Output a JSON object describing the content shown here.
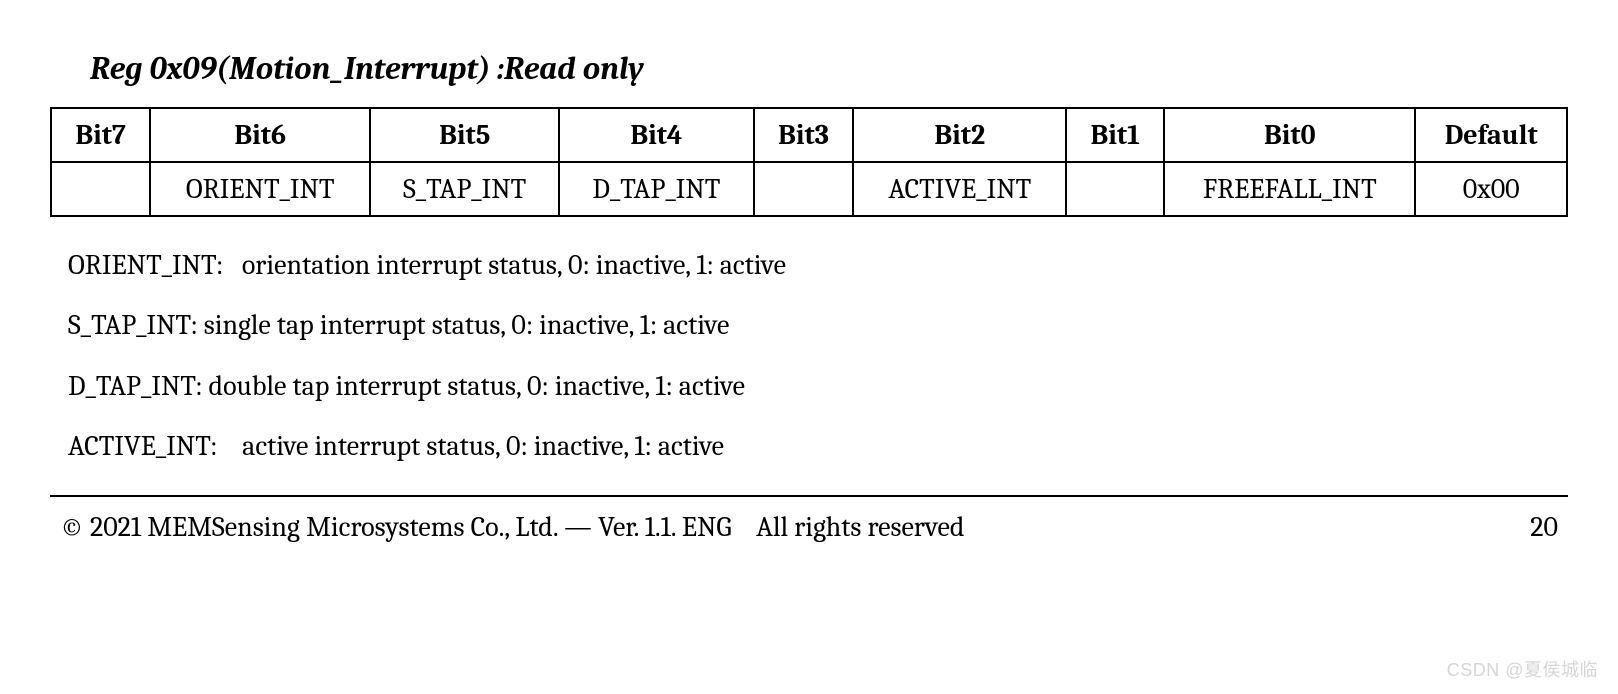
{
  "title": "Reg 0x09(Motion_Interrupt) :Read only",
  "table": {
    "headers": [
      "Bit7",
      "Bit6",
      "Bit5",
      "Bit4",
      "Bit3",
      "Bit2",
      "Bit1",
      "Bit0",
      "Default"
    ],
    "row": [
      "",
      "ORIENT_INT",
      "S_TAP_INT",
      "D_TAP_INT",
      "",
      "ACTIVE_INT",
      "",
      "FREEFALL_INT",
      "0x00"
    ],
    "border_color": "#000000",
    "header_fontsize": 28,
    "cell_fontsize": 28
  },
  "descriptions": [
    "ORIENT_INT:   orientation interrupt status, 0: inactive, 1: active",
    "S_TAP_INT: single tap interrupt status, 0: inactive, 1: active",
    "D_TAP_INT: double tap interrupt status, 0: inactive, 1: active",
    "ACTIVE_INT:    active interrupt status, 0: inactive, 1: active"
  ],
  "footer": {
    "left": "© 2021 MEMSensing Microsystems Co., Ltd. — Ver. 1.1. ENG    All rights reserved",
    "page": "20"
  },
  "watermark": "CSDN @夏侯城临",
  "colors": {
    "text": "#000000",
    "background": "#ffffff",
    "watermark": "#d6d6d6"
  },
  "typography": {
    "title_fontsize": 32,
    "title_weight": 700,
    "title_style": "italic",
    "body_fontsize": 28,
    "font_family": "Cambria, Georgia, serif"
  }
}
